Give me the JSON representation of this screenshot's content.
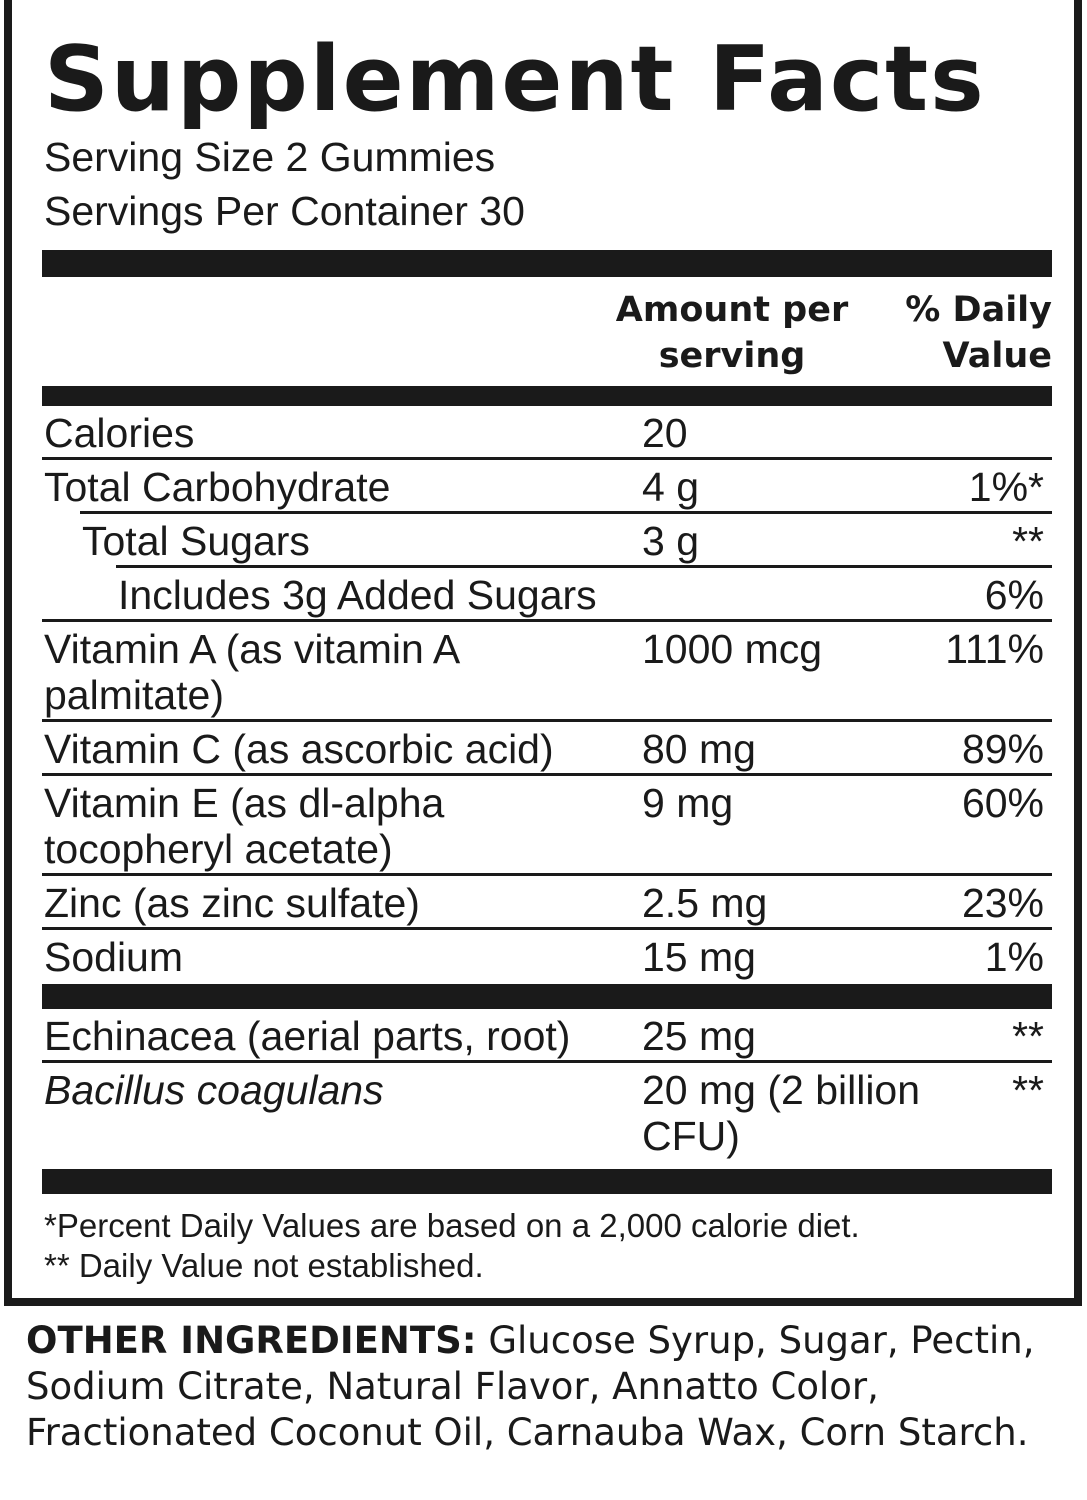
{
  "title": "Supplement Facts",
  "serving_size": "Serving Size 2 Gummies",
  "servings_per_container": "Servings Per Container 30",
  "header": {
    "amount": "Amount per serving",
    "daily_value": "% Daily Value"
  },
  "rows": [
    {
      "label": "Calories",
      "amount": "20",
      "dv": "",
      "indent": 0
    },
    {
      "label": "Total Carbohydrate",
      "amount": "4 g",
      "dv": "1%*",
      "indent": 0
    },
    {
      "label": "Total Sugars",
      "amount": "3 g",
      "dv": "**",
      "indent": 1
    },
    {
      "label": "Includes 3g Added Sugars",
      "amount": "",
      "dv": "6%",
      "indent": 2
    },
    {
      "label": "Vitamin A (as vitamin A palmitate)",
      "amount": "1000 mcg",
      "dv": "111%",
      "indent": 0
    },
    {
      "label": "Vitamin C (as ascorbic acid)",
      "amount": "80 mg",
      "dv": "89%",
      "indent": 0
    },
    {
      "label": "Vitamin E (as dl-alpha tocopheryl acetate)",
      "amount": "9 mg",
      "dv": "60%",
      "indent": 0
    },
    {
      "label": "Zinc (as zinc sulfate)",
      "amount": "2.5 mg",
      "dv": "23%",
      "indent": 0
    },
    {
      "label": "Sodium",
      "amount": "15 mg",
      "dv": "1%",
      "indent": 0
    }
  ],
  "rows2": [
    {
      "label": "Echinacea (aerial parts, root)",
      "amount": "25 mg",
      "dv": "**",
      "italic": false
    },
    {
      "label": "Bacillus coagulans",
      "amount": "20 mg (2 billion CFU)",
      "dv": "**",
      "italic": true
    }
  ],
  "footnotes": [
    "*Percent Daily Values are based on a 2,000 calorie diet.",
    "** Daily Value not established."
  ],
  "other_ingredients": {
    "heading": "OTHER INGREDIENTS:",
    "text": " Glucose Syrup, Sugar, Pectin, Sodium Citrate, Natural Flavor, Annatto Color, Fractionated Coconut Oil, Carnauba Wax, Corn Starch."
  }
}
